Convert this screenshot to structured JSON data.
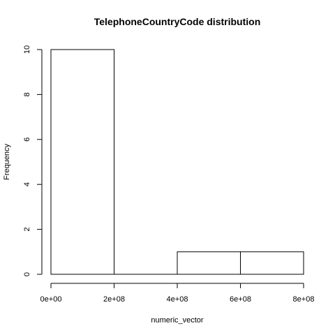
{
  "chart_data": {
    "type": "bar",
    "title": "TelephoneCountryCode distribution",
    "xlabel": "numeric_vector",
    "ylabel": "Frequency",
    "bins": [
      {
        "from": 0,
        "to": 200000000,
        "count": 10
      },
      {
        "from": 200000000,
        "to": 400000000,
        "count": 0
      },
      {
        "from": 400000000,
        "to": 600000000,
        "count": 1
      },
      {
        "from": 600000000,
        "to": 800000000,
        "count": 1
      }
    ],
    "xlim": [
      0,
      800000000
    ],
    "ylim": [
      0,
      10
    ],
    "x_ticks": [
      {
        "value": 0,
        "label": "0e+00"
      },
      {
        "value": 200000000,
        "label": "2e+08"
      },
      {
        "value": 400000000,
        "label": "4e+08"
      },
      {
        "value": 600000000,
        "label": "6e+08"
      },
      {
        "value": 800000000,
        "label": "8e+08"
      }
    ],
    "y_ticks": [
      {
        "value": 0,
        "label": "0"
      },
      {
        "value": 2,
        "label": "2"
      },
      {
        "value": 4,
        "label": "4"
      },
      {
        "value": 6,
        "label": "6"
      },
      {
        "value": 8,
        "label": "8"
      },
      {
        "value": 10,
        "label": "10"
      }
    ],
    "grid": false,
    "legend": "none"
  }
}
